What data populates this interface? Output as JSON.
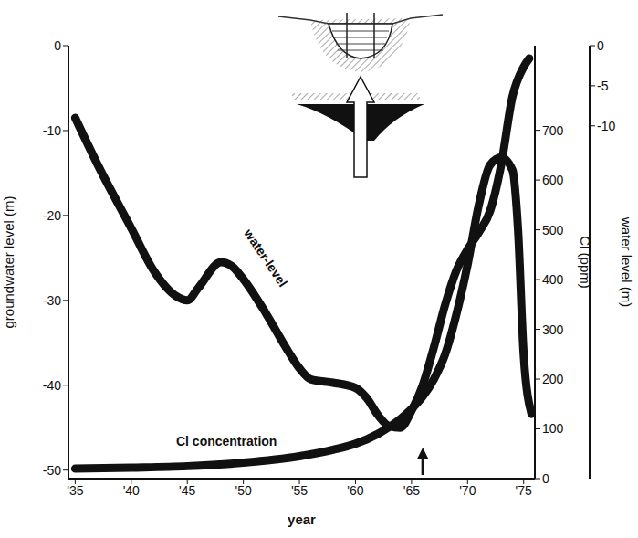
{
  "chart_data": {
    "type": "line",
    "x_label": "year",
    "y_label": "groundwater level (m)",
    "y2_label": "Cl (ppm)",
    "y3_label": "water level (m)",
    "xlim": [
      1934.4,
      1976
    ],
    "xticks": [
      {
        "value": 1935,
        "label": "'35"
      },
      {
        "value": 1940,
        "label": "'40"
      },
      {
        "value": 1945,
        "label": "'45"
      },
      {
        "value": 1950,
        "label": "'50"
      },
      {
        "value": 1955,
        "label": "'55"
      },
      {
        "value": 1960,
        "label": "'60"
      },
      {
        "value": 1965,
        "label": "'65"
      },
      {
        "value": 1970,
        "label": "'70"
      },
      {
        "value": 1975,
        "label": "'75"
      }
    ],
    "ylim": [
      -51,
      0
    ],
    "yticks": [
      -50,
      -40,
      -30,
      -20,
      -10,
      0
    ],
    "y2lim": [
      0,
      870
    ],
    "y2ticks": [
      0,
      100,
      200,
      300,
      400,
      500,
      600,
      700
    ],
    "y3lim": [
      -54,
      0
    ],
    "y3ticks": [
      0,
      -5,
      -10
    ],
    "series": [
      {
        "name": "water-level",
        "color": "#111111",
        "axis": "y",
        "x": [
          1935,
          1937,
          1940,
          1942,
          1944,
          1945,
          1946,
          1948,
          1949,
          1950,
          1952,
          1954,
          1955,
          1956,
          1958,
          1960,
          1961,
          1962,
          1963,
          1964,
          1965,
          1966,
          1967,
          1968,
          1969,
          1970,
          1971,
          1972,
          1973,
          1974,
          1975,
          1975.5
        ],
        "values": [
          -8.5,
          -14,
          -21.5,
          -26.5,
          -29.5,
          -30,
          -28.5,
          -25.5,
          -26,
          -27.5,
          -31.5,
          -36,
          -38,
          -39.3,
          -39.7,
          -40.3,
          -41.5,
          -43.5,
          -44.8,
          -45,
          -43,
          -40,
          -35.5,
          -30.5,
          -26.5,
          -24,
          -22,
          -19.5,
          -14,
          -6,
          -2.5,
          -1.5
        ]
      },
      {
        "name": "Cl concentration",
        "color": "#111111",
        "axis": "y2",
        "x": [
          1935,
          1940,
          1945,
          1950,
          1955,
          1958,
          1960,
          1962,
          1964,
          1965,
          1966,
          1967,
          1968,
          1969,
          1970,
          1971,
          1972,
          1973,
          1974,
          1974.5,
          1975,
          1975.7
        ],
        "values": [
          20,
          22,
          25,
          32,
          45,
          58,
          70,
          90,
          120,
          140,
          165,
          200,
          250,
          330,
          430,
          550,
          630,
          645,
          620,
          500,
          250,
          130
        ]
      }
    ],
    "annotations": [
      {
        "text": "water-level",
        "x": 1952,
        "y": -25
      },
      {
        "text": "Cl concentration",
        "x": 1948.5,
        "y2": 75
      },
      {
        "x": 1966,
        "marker": "arrow"
      }
    ],
    "grid": false
  }
}
